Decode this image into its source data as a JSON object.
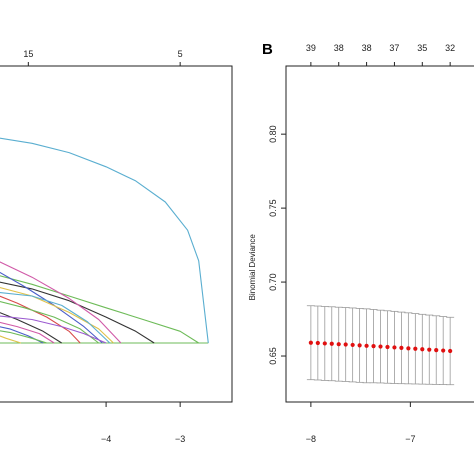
{
  "panels": {
    "left": {
      "letter": ""
    },
    "right": {
      "letter": "B"
    }
  },
  "chart_data": [
    {
      "type": "line",
      "panel": "A",
      "title": "",
      "xlabel": "",
      "ylabel": "",
      "x_ticks": [
        -4,
        -3
      ],
      "top_ticks": [
        {
          "x": -5.05,
          "label": "15"
        },
        {
          "x": -3.0,
          "label": "5"
        }
      ],
      "xlim": [
        -5.5,
        -2.3
      ],
      "ylim": [
        0,
        1
      ],
      "grid": false,
      "legend": "none",
      "series": [
        {
          "color": "#5aaed0",
          "x": [
            -5.6,
            -5.0,
            -4.5,
            -4.0,
            -3.6,
            -3.2,
            -2.9,
            -2.75,
            -2.62
          ],
          "y": [
            0.88,
            0.85,
            0.81,
            0.75,
            0.69,
            0.6,
            0.48,
            0.35,
            0.0
          ]
        },
        {
          "color": "#6dbb58",
          "x": [
            -5.6,
            -5.0,
            -4.5,
            -4.0,
            -3.5,
            -3.0,
            -2.75
          ],
          "y": [
            0.3,
            0.25,
            0.2,
            0.15,
            0.1,
            0.05,
            0.0
          ]
        },
        {
          "color": "#333333",
          "x": [
            -5.6,
            -5.0,
            -4.5,
            -4.0,
            -3.6,
            -3.35
          ],
          "y": [
            0.27,
            0.23,
            0.18,
            0.11,
            0.05,
            0.0
          ]
        },
        {
          "color": "#d05aa8",
          "x": [
            -5.6,
            -5.0,
            -4.5,
            -4.1,
            -3.8
          ],
          "y": [
            0.37,
            0.28,
            0.19,
            0.1,
            0.0
          ]
        },
        {
          "color": "#4a5ec9",
          "x": [
            -5.6,
            -5.1,
            -4.7,
            -4.3,
            -4.05
          ],
          "y": [
            0.33,
            0.24,
            0.16,
            0.07,
            0.0
          ]
        },
        {
          "color": "#e0c24a",
          "x": [
            -5.6,
            -5.0,
            -4.5,
            -4.1,
            -3.9
          ],
          "y": [
            0.25,
            0.2,
            0.13,
            0.06,
            0.0
          ]
        },
        {
          "color": "#d84a4a",
          "x": [
            -5.6,
            -5.2,
            -4.8,
            -4.5,
            -4.35
          ],
          "y": [
            0.22,
            0.17,
            0.11,
            0.05,
            0.0
          ]
        },
        {
          "color": "#5aaed0",
          "x": [
            -5.6,
            -5.0,
            -4.6,
            -4.25,
            -3.95
          ],
          "y": [
            0.22,
            0.2,
            0.16,
            0.09,
            0.0
          ]
        },
        {
          "color": "#6dbb58",
          "x": [
            -5.6,
            -5.1,
            -4.7,
            -4.35,
            -4.1
          ],
          "y": [
            0.19,
            0.15,
            0.11,
            0.06,
            0.0
          ]
        },
        {
          "color": "#333333",
          "x": [
            -5.6,
            -5.2,
            -4.85,
            -4.6
          ],
          "y": [
            0.15,
            0.1,
            0.05,
            0.0
          ]
        },
        {
          "color": "#9b5ad0",
          "x": [
            -5.6,
            -5.0,
            -4.6,
            -4.3,
            -4.0
          ],
          "y": [
            0.12,
            0.1,
            0.07,
            0.04,
            0.0
          ]
        },
        {
          "color": "#d05aa8",
          "x": [
            -5.6,
            -5.2,
            -4.9,
            -4.7
          ],
          "y": [
            0.1,
            0.07,
            0.04,
            0.0
          ]
        },
        {
          "color": "#4a5ec9",
          "x": [
            -5.6,
            -5.3,
            -5.05,
            -4.85
          ],
          "y": [
            0.08,
            0.06,
            0.03,
            0.0
          ]
        },
        {
          "color": "#6dbb58",
          "x": [
            -5.6,
            -5.3,
            -5.0,
            -4.8
          ],
          "y": [
            0.06,
            0.045,
            0.02,
            0.0
          ]
        },
        {
          "color": "#e0c24a",
          "x": [
            -5.6,
            -5.35,
            -5.15
          ],
          "y": [
            0.05,
            0.02,
            0.0
          ]
        }
      ]
    },
    {
      "type": "scatter",
      "panel": "B",
      "title": "",
      "xlabel": "",
      "ylabel": "Binomial Deviance",
      "x_ticks": [
        -8,
        -7
      ],
      "y_ticks": [
        0.65,
        0.7,
        0.75,
        0.8
      ],
      "top_ticks": [
        {
          "x": -8.0,
          "label": "39"
        },
        {
          "x": -7.72,
          "label": "38"
        },
        {
          "x": -7.44,
          "label": "38"
        },
        {
          "x": -7.16,
          "label": "37"
        },
        {
          "x": -6.88,
          "label": "35"
        },
        {
          "x": -6.6,
          "label": "32"
        }
      ],
      "xlim": [
        -8.25,
        -6.3
      ],
      "ylim": [
        0.625,
        0.84
      ],
      "grid": false,
      "legend": "none",
      "error_bar_color": "#9a9a9a",
      "point_color": "#e01010",
      "x": [
        -8.0,
        -7.93,
        -7.86,
        -7.79,
        -7.72,
        -7.65,
        -7.58,
        -7.51,
        -7.44,
        -7.37,
        -7.3,
        -7.23,
        -7.16,
        -7.09,
        -7.02,
        -6.95,
        -6.88,
        -6.81,
        -6.74,
        -6.67,
        -6.6
      ],
      "y": [
        0.659,
        0.6588,
        0.6585,
        0.6583,
        0.658,
        0.6578,
        0.6575,
        0.6572,
        0.6569,
        0.6567,
        0.6564,
        0.6561,
        0.6558,
        0.6555,
        0.6552,
        0.6549,
        0.6546,
        0.6543,
        0.654,
        0.6537,
        0.6534
      ],
      "upper": [
        0.684,
        0.6838,
        0.6835,
        0.6833,
        0.683,
        0.6828,
        0.6825,
        0.6822,
        0.6819,
        0.6815,
        0.681,
        0.6806,
        0.6802,
        0.6797,
        0.6792,
        0.6787,
        0.6782,
        0.6777,
        0.6772,
        0.6767,
        0.6762
      ],
      "lower": [
        0.634,
        0.6338,
        0.6335,
        0.6333,
        0.633,
        0.6328,
        0.6325,
        0.6322,
        0.6319,
        0.6319,
        0.6318,
        0.6316,
        0.6314,
        0.6313,
        0.6312,
        0.6311,
        0.631,
        0.6309,
        0.6308,
        0.6307,
        0.6306
      ]
    }
  ]
}
